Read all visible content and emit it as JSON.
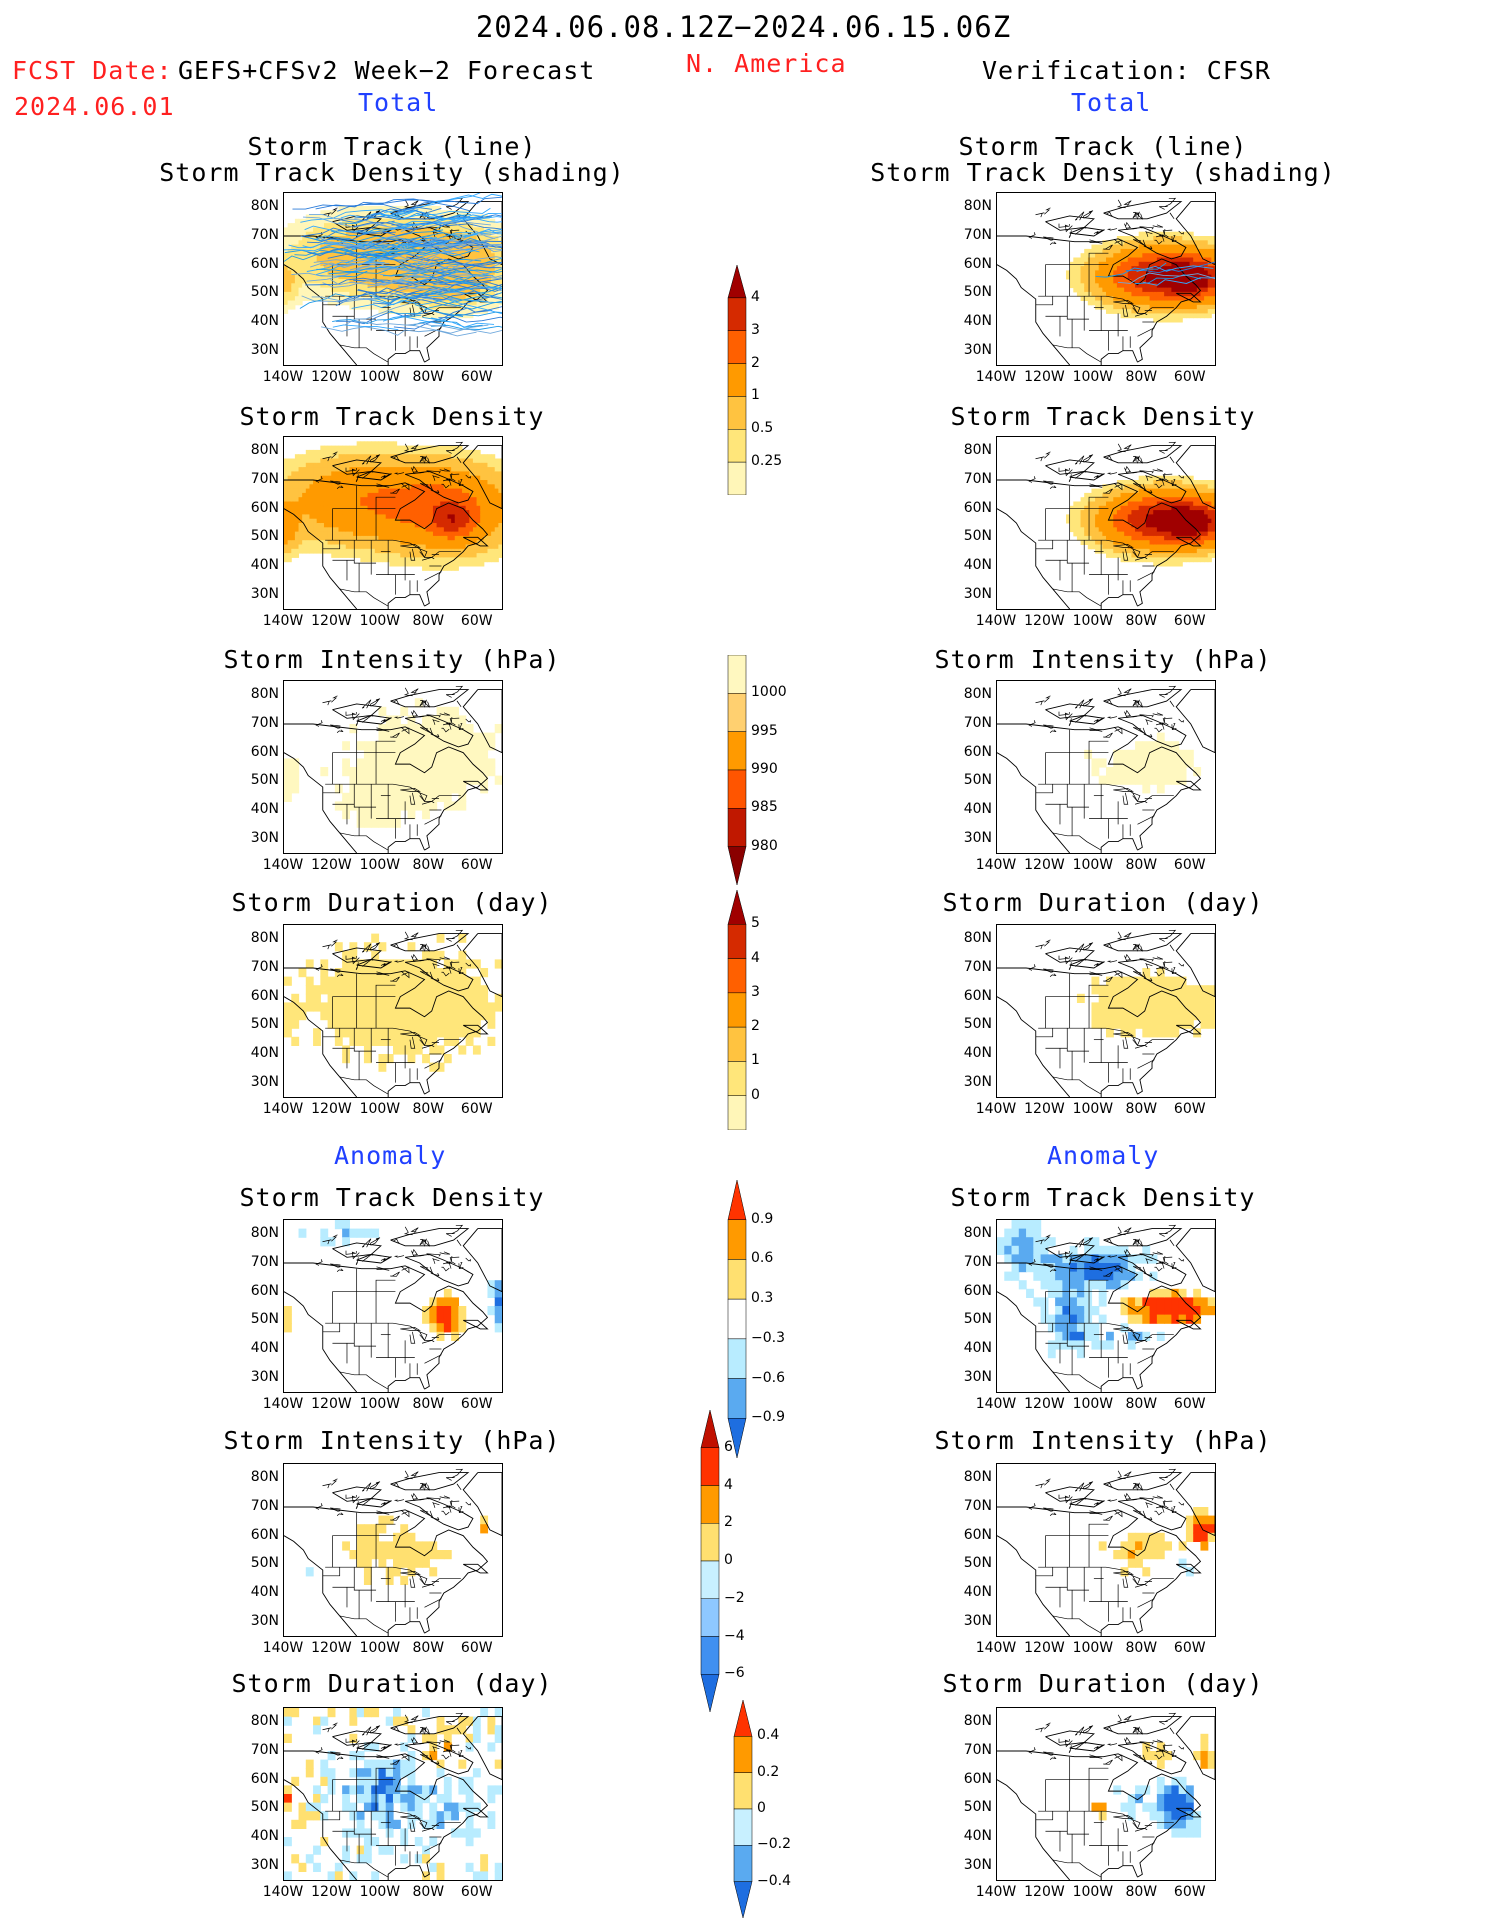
{
  "header": {
    "period": "2024.06.08.12Z−2024.06.15.06Z",
    "region": "N. America",
    "fcst_label": "FCST Date:",
    "model": "GEFS+CFSv2 Week−2 Forecast",
    "fcst_date": "2024.06.01",
    "verification": "Verification: CFSR"
  },
  "sections": {
    "total": "Total",
    "anomaly": "Anomaly"
  },
  "axes": {
    "lat_labels": [
      "80N",
      "70N",
      "60N",
      "50N",
      "40N",
      "30N"
    ],
    "lon_labels": [
      "140W",
      "120W",
      "100W",
      "80W",
      "60W"
    ]
  },
  "panels": {
    "track_line": {
      "title1": "Storm Track (line)",
      "title2": "Storm Track Density (shading)"
    },
    "track_density": {
      "title": "Storm Track Density"
    },
    "intensity": {
      "title": "Storm Intensity (hPa)"
    },
    "duration": {
      "title": "Storm Duration (day)"
    }
  },
  "colorbars": {
    "density_total": {
      "labels": [
        "4",
        "3",
        "2",
        "1",
        "0.5",
        "0.25"
      ],
      "colors": [
        "#a00000",
        "#d52a00",
        "#ff6000",
        "#ff9a00",
        "#ffc340",
        "#ffe67a",
        "#fff6b8"
      ]
    },
    "intensity_total": {
      "labels": [
        "1000",
        "995",
        "990",
        "985",
        "980"
      ],
      "colors": [
        "#fff8c0",
        "#ffd070",
        "#ff9a00",
        "#ff5500",
        "#c01800",
        "#8a0000"
      ]
    },
    "duration_total": {
      "labels": [
        "5",
        "4",
        "3",
        "2",
        "1",
        "0"
      ],
      "colors": [
        "#a00000",
        "#d52a00",
        "#ff6000",
        "#ff9a00",
        "#ffc340",
        "#ffe67a",
        "#fff6b8"
      ]
    },
    "density_anom": {
      "labels": [
        "0.9",
        "0.6",
        "0.3",
        "−0.3",
        "−0.6",
        "−0.9"
      ],
      "colors": [
        "#ff3300",
        "#ff9a00",
        "#ffe070",
        "#ffffff",
        "#b8ecff",
        "#5aaaf0",
        "#1e6ee0"
      ]
    },
    "intensity_anom": {
      "labels": [
        "6",
        "4",
        "2",
        "0",
        "−2",
        "−4",
        "−6"
      ],
      "colors": [
        "#c01000",
        "#ff3300",
        "#ff9a00",
        "#ffe070",
        "#c8f0ff",
        "#8ec8ff",
        "#4090f0",
        "#1e6ee0"
      ]
    },
    "duration_anom": {
      "labels": [
        "0.4",
        "0.2",
        "0",
        "−0.2",
        "−0.4"
      ],
      "colors": [
        "#ff3300",
        "#ff9a00",
        "#ffe070",
        "#c8f0ff",
        "#5aaaf0",
        "#1e6ee0"
      ]
    }
  }
}
